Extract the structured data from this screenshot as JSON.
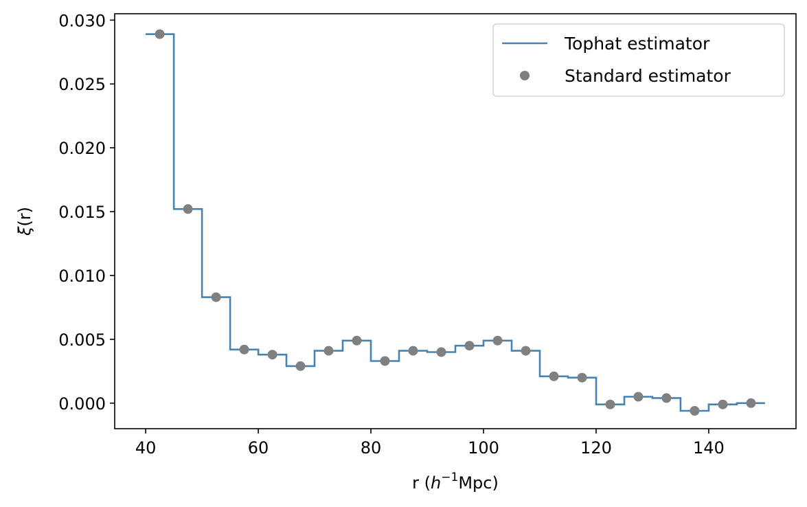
{
  "chart_data": {
    "type": "line",
    "title": "",
    "xlabel": {
      "prefix": "r (",
      "var": "h",
      "exp": "−1",
      "suffix": "Mpc)"
    },
    "ylabel": {
      "var": "ξ",
      "suffix": "(r)"
    },
    "xlim": [
      34.5,
      155.5
    ],
    "ylim": [
      -0.002,
      0.0305
    ],
    "x_ticks": [
      40,
      60,
      80,
      100,
      120,
      140
    ],
    "x_tick_labels": [
      "40",
      "60",
      "80",
      "100",
      "120",
      "140"
    ],
    "y_ticks": [
      0.0,
      0.005,
      0.01,
      0.015,
      0.02,
      0.025,
      0.03
    ],
    "y_tick_labels": [
      "0.000",
      "0.005",
      "0.010",
      "0.015",
      "0.020",
      "0.025",
      "0.030"
    ],
    "grid": false,
    "legend": {
      "placement": "top-right"
    },
    "series": [
      {
        "name": "Tophat estimator",
        "style": "step",
        "color": "#4682b4",
        "bin_edges": [
          40,
          45,
          50,
          55,
          60,
          65,
          70,
          75,
          80,
          85,
          90,
          95,
          100,
          105,
          110,
          115,
          120,
          125,
          130,
          135,
          140,
          145,
          150
        ],
        "values": [
          0.0289,
          0.0152,
          0.0083,
          0.0042,
          0.0038,
          0.0029,
          0.0041,
          0.0049,
          0.0033,
          0.0041,
          0.004,
          0.0045,
          0.0049,
          0.0041,
          0.0021,
          0.002,
          -0.0001,
          0.0005,
          0.0004,
          -0.0006,
          -0.0001,
          0.0
        ]
      },
      {
        "name": "Standard estimator",
        "style": "marker",
        "color": "#808080",
        "x": [
          42.5,
          47.5,
          52.5,
          57.5,
          62.5,
          67.5,
          72.5,
          77.5,
          82.5,
          87.5,
          92.5,
          97.5,
          102.5,
          107.5,
          112.5,
          117.5,
          122.5,
          127.5,
          132.5,
          137.5,
          142.5,
          147.5
        ],
        "y": [
          0.0289,
          0.0152,
          0.0083,
          0.0042,
          0.0038,
          0.0029,
          0.0041,
          0.0049,
          0.0033,
          0.0041,
          0.004,
          0.0045,
          0.0049,
          0.0041,
          0.0021,
          0.002,
          -0.0001,
          0.0005,
          0.0004,
          -0.0006,
          -0.0001,
          0.0
        ]
      }
    ]
  }
}
